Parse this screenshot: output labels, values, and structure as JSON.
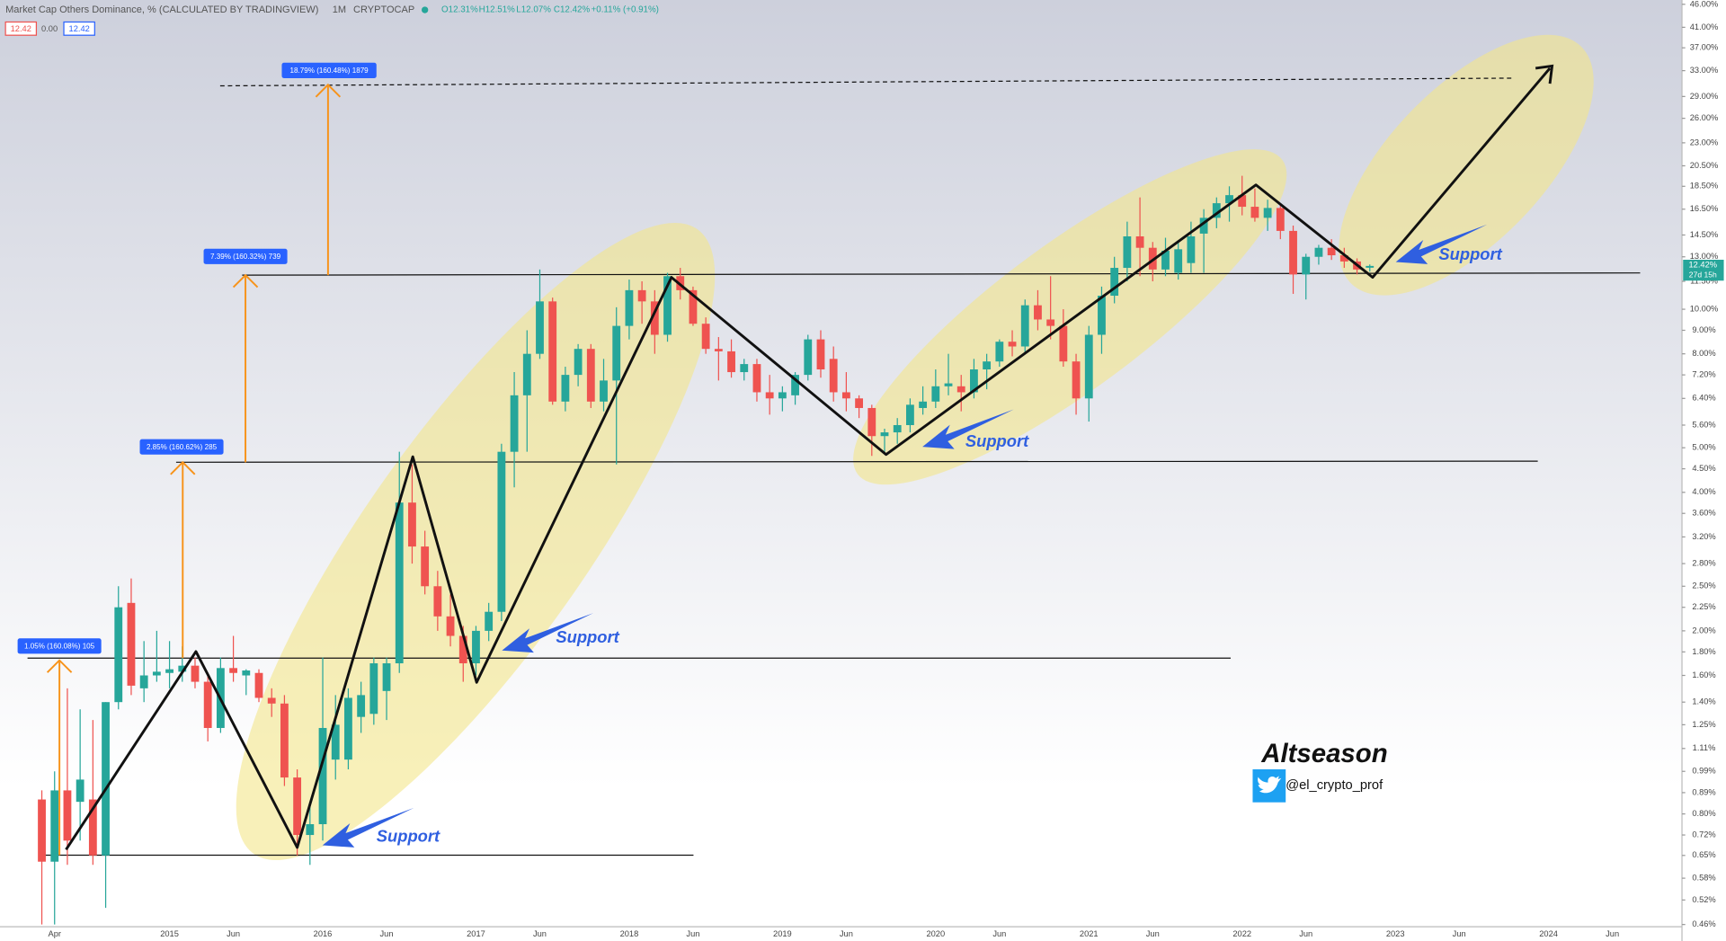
{
  "chart_data": {
    "type": "candlestick",
    "title": "Market Cap Others Dominance, % (CALCULATED BY TRADINGVIEW)",
    "interval": "1M",
    "exchange": "CRYPTOCAP",
    "legend_values": [
      "O12.31%",
      "H12.51%",
      "L12.07%",
      "C12.42%",
      "+0.11% (+0.91%)"
    ],
    "price_boxes": [
      "12.42",
      "0.00",
      "12.42"
    ],
    "price_label": "12.42%",
    "countdown": "27d 15h",
    "annotations": [
      "1.05% (160.08%) 105",
      "2.85% (160.62%) 285",
      "7.39% (160.32%) 739",
      "18.79% (160.48%) 1879",
      "Support",
      "Support",
      "Support",
      "Support",
      "Altseason",
      "@el_crypto_prof"
    ],
    "up_color": "#26a69a",
    "down_color": "#ef5350",
    "log_scale": true,
    "categories": [
      null,
      "Apr",
      null,
      null,
      null,
      null,
      null,
      null,
      null,
      null,
      "2015",
      null,
      null,
      null,
      null,
      "Jun",
      null,
      null,
      null,
      null,
      null,
      null,
      "2016",
      null,
      null,
      null,
      null,
      "Jun",
      null,
      null,
      null,
      null,
      null,
      null,
      "2017",
      null,
      null,
      null,
      null,
      "Jun",
      null,
      null,
      null,
      null,
      null,
      null,
      "2018",
      null,
      null,
      null,
      null,
      "Jun",
      null,
      null,
      null,
      null,
      null,
      null,
      "2019",
      null,
      null,
      null,
      null,
      "Jun",
      null,
      null,
      null,
      null,
      null,
      null,
      "2020",
      null,
      null,
      null,
      null,
      "Jun",
      null,
      null,
      null,
      null,
      null,
      null,
      "2021",
      null,
      null,
      null,
      null,
      "Jun",
      null,
      null,
      null,
      null,
      null,
      null,
      "2022",
      null,
      null,
      null,
      null,
      "Jun",
      null,
      null,
      null,
      null,
      null,
      null,
      "2023",
      null,
      null,
      null,
      null,
      "Jun",
      null,
      null,
      null,
      null,
      null,
      null,
      "2024",
      null,
      null,
      null,
      null,
      "Jun",
      null,
      null,
      null,
      null,
      null
    ],
    "open": [
      0.86,
      0.63,
      0.9,
      0.85,
      0.86,
      0.65,
      1.4,
      2.3,
      1.5,
      1.6,
      1.62,
      1.63,
      1.68,
      1.55,
      1.23,
      1.66,
      1.6,
      1.62,
      1.43,
      1.39,
      0.96,
      0.72,
      0.76,
      1.05,
      1.05,
      1.3,
      1.32,
      1.48,
      1.7,
      3.8,
      3.05,
      2.5,
      2.15,
      1.95,
      1.7,
      2.0,
      2.2,
      4.9,
      6.5,
      8.0,
      10.4,
      6.3,
      7.2,
      8.2,
      6.3,
      7.0,
      9.2,
      11.0,
      10.4,
      8.8,
      11.8,
      11.0,
      9.3,
      8.2,
      8.1,
      7.3,
      7.6,
      6.6,
      6.4,
      6.5,
      7.2,
      8.6,
      7.8,
      6.6,
      6.4,
      6.1,
      5.3,
      5.4,
      5.6,
      6.1,
      6.3,
      6.8,
      6.8,
      6.6,
      7.4,
      7.7,
      8.5,
      8.3,
      10.2,
      9.5,
      9.2,
      7.7,
      6.4,
      8.8,
      10.7,
      12.3,
      14.4,
      13.6,
      12.2,
      12.0,
      12.6,
      14.6,
      15.8,
      17.0,
      17.7,
      16.7,
      15.8,
      16.6,
      14.8,
      11.9,
      13.0,
      13.6,
      13.1,
      12.7,
      12.31,
      null,
      null,
      null,
      null,
      null,
      null,
      null,
      null,
      null,
      null,
      null,
      null,
      null,
      null,
      null,
      null,
      null,
      null,
      null,
      null,
      null,
      null,
      null,
      null
    ],
    "high": [
      0.9,
      0.99,
      1.5,
      1.35,
      1.28,
      1.4,
      2.5,
      2.6,
      1.9,
      2.0,
      1.9,
      1.85,
      1.75,
      1.6,
      1.75,
      1.95,
      1.65,
      1.65,
      1.5,
      1.45,
      1.0,
      0.85,
      1.75,
      1.45,
      1.5,
      1.55,
      1.75,
      1.75,
      4.9,
      4.6,
      3.3,
      2.7,
      2.4,
      2.05,
      2.05,
      2.3,
      5.1,
      7.3,
      9.0,
      12.2,
      10.6,
      7.5,
      8.4,
      8.4,
      7.8,
      10.1,
      11.6,
      11.5,
      11.0,
      12.0,
      12.3,
      11.2,
      9.6,
      8.7,
      8.6,
      7.8,
      7.8,
      7.2,
      6.8,
      7.3,
      8.8,
      9.0,
      8.3,
      7.3,
      6.5,
      6.2,
      5.5,
      5.8,
      6.4,
      6.8,
      7.4,
      8.0,
      7.2,
      7.8,
      8.0,
      8.6,
      9.0,
      10.5,
      11.0,
      11.8,
      10.0,
      8.0,
      9.2,
      11.2,
      13.0,
      15.5,
      17.5,
      14.0,
      14.3,
      14.0,
      15.5,
      16.5,
      17.5,
      18.5,
      19.5,
      18.3,
      17.3,
      17.0,
      15.2,
      13.2,
      13.8,
      14.2,
      13.6,
      12.9,
      12.51,
      null,
      null,
      null,
      null,
      null,
      null,
      null,
      null,
      null,
      null,
      null,
      null,
      null,
      null,
      null,
      null,
      null,
      null,
      null,
      null,
      null,
      null,
      null,
      null
    ],
    "low": [
      0.46,
      0.46,
      0.62,
      0.7,
      0.62,
      0.5,
      1.35,
      1.45,
      1.4,
      1.55,
      1.5,
      1.55,
      1.5,
      1.15,
      1.2,
      1.55,
      1.45,
      1.4,
      1.3,
      0.92,
      0.65,
      0.62,
      0.7,
      0.95,
      1.0,
      1.2,
      1.25,
      1.28,
      1.62,
      2.8,
      2.4,
      2.0,
      1.85,
      1.55,
      1.6,
      1.9,
      2.1,
      4.1,
      4.9,
      7.8,
      6.2,
      6.0,
      6.8,
      6.1,
      6.0,
      4.6,
      8.6,
      9.3,
      8.0,
      8.5,
      10.5,
      9.2,
      8.0,
      7.0,
      7.1,
      7.0,
      6.3,
      5.9,
      6.0,
      6.2,
      7.0,
      7.1,
      6.3,
      6.0,
      5.8,
      4.8,
      4.9,
      5.1,
      5.4,
      5.9,
      6.1,
      6.5,
      6.0,
      6.4,
      6.7,
      7.5,
      7.9,
      8.0,
      9.0,
      8.6,
      7.5,
      5.9,
      5.7,
      8.0,
      10.3,
      11.5,
      11.8,
      11.5,
      11.8,
      11.6,
      12.0,
      12.0,
      15.0,
      15.5,
      16.0,
      15.5,
      14.8,
      14.2,
      10.8,
      10.5,
      12.5,
      12.8,
      12.3,
      11.9,
      12.07,
      null,
      null,
      null,
      null,
      null,
      null,
      null,
      null,
      null,
      null,
      null,
      null,
      null,
      null,
      null,
      null,
      null,
      null,
      null,
      null,
      null,
      null,
      null,
      null
    ],
    "close": [
      0.63,
      0.9,
      0.7,
      0.95,
      0.65,
      1.4,
      2.25,
      1.52,
      1.6,
      1.63,
      1.65,
      1.68,
      1.55,
      1.23,
      1.66,
      1.62,
      1.64,
      1.43,
      1.39,
      0.96,
      0.72,
      0.76,
      1.23,
      1.25,
      1.43,
      1.45,
      1.7,
      1.7,
      3.8,
      3.05,
      2.5,
      2.15,
      1.95,
      1.7,
      2.0,
      2.2,
      4.9,
      6.5,
      8.0,
      10.4,
      6.3,
      7.2,
      8.2,
      6.3,
      7.0,
      9.2,
      11.0,
      10.4,
      8.8,
      11.8,
      11.0,
      9.3,
      8.2,
      8.1,
      7.3,
      7.6,
      6.6,
      6.4,
      6.6,
      7.2,
      8.6,
      7.4,
      6.6,
      6.4,
      6.1,
      5.3,
      5.4,
      5.6,
      6.2,
      6.3,
      6.8,
      6.9,
      6.6,
      7.4,
      7.7,
      8.5,
      8.3,
      10.2,
      9.5,
      9.2,
      7.7,
      6.4,
      8.8,
      10.7,
      12.3,
      14.4,
      13.6,
      12.2,
      13.4,
      13.5,
      14.4,
      15.8,
      17.0,
      17.7,
      16.7,
      15.8,
      16.6,
      14.8,
      11.9,
      13.0,
      13.6,
      13.1,
      12.7,
      12.2,
      12.42,
      null,
      null,
      null,
      null,
      null,
      null,
      null,
      null,
      null,
      null,
      null,
      null,
      null,
      null,
      null,
      null,
      null,
      null,
      null,
      null,
      null,
      null,
      null,
      null
    ],
    "ylim": [
      0.455,
      47
    ],
    "yticks": [
      {
        "value": 46,
        "label": "46.00%"
      },
      {
        "value": 41,
        "label": "41.00%"
      },
      {
        "value": 37,
        "label": "37.00%"
      },
      {
        "value": 33,
        "label": "33.00%"
      },
      {
        "value": 29,
        "label": "29.00%"
      },
      {
        "value": 26,
        "label": "26.00%"
      },
      {
        "value": 23,
        "label": "23.00%"
      },
      {
        "value": 20.5,
        "label": "20.50%"
      },
      {
        "value": 18.5,
        "label": "18.50%"
      },
      {
        "value": 16.5,
        "label": "16.50%"
      },
      {
        "value": 14.5,
        "label": "14.50%"
      },
      {
        "value": 13,
        "label": "13.00%"
      },
      {
        "value": 11.5,
        "label": "11.50%"
      },
      {
        "value": 10,
        "label": "10.00%"
      },
      {
        "value": 9,
        "label": "9.00%"
      },
      {
        "value": 8,
        "label": "8.00%"
      },
      {
        "value": 7.2,
        "label": "7.20%"
      },
      {
        "value": 6.4,
        "label": "6.40%"
      },
      {
        "value": 5.6,
        "label": "5.60%"
      },
      {
        "value": 5,
        "label": "5.00%"
      },
      {
        "value": 4.5,
        "label": "4.50%"
      },
      {
        "value": 4,
        "label": "4.00%"
      },
      {
        "value": 3.6,
        "label": "3.60%"
      },
      {
        "value": 3.2,
        "label": "3.20%"
      },
      {
        "value": 2.8,
        "label": "2.80%"
      },
      {
        "value": 2.5,
        "label": "2.50%"
      },
      {
        "value": 2.25,
        "label": "2.25%"
      },
      {
        "value": 2,
        "label": "2.00%"
      },
      {
        "value": 1.8,
        "label": "1.80%"
      },
      {
        "value": 1.6,
        "label": "1.60%"
      },
      {
        "value": 1.4,
        "label": "1.40%"
      },
      {
        "value": 1.25,
        "label": "1.25%"
      },
      {
        "value": 1.11,
        "label": "1.11%"
      },
      {
        "value": 0.99,
        "label": "0.99%"
      },
      {
        "value": 0.89,
        "label": "0.89%"
      },
      {
        "value": 0.8,
        "label": "0.80%"
      },
      {
        "value": 0.72,
        "label": "0.72%"
      },
      {
        "value": 0.65,
        "label": "0.65%"
      },
      {
        "value": 0.58,
        "label": "0.58%"
      },
      {
        "value": 0.52,
        "label": "0.52%"
      },
      {
        "value": 0.46,
        "label": "0.46%"
      }
    ]
  }
}
